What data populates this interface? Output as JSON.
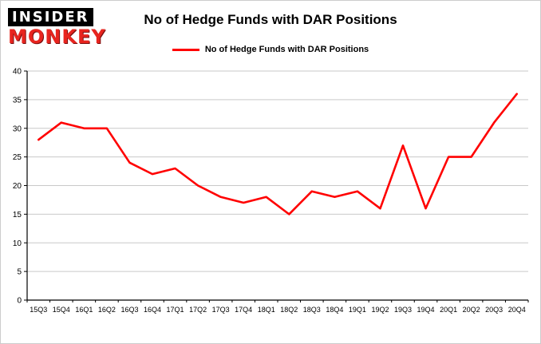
{
  "logo": {
    "line1": "INSIDER",
    "line2": "MONKEY",
    "brand_red": "#e8251f",
    "brand_black": "#000000"
  },
  "chart_data": {
    "type": "line",
    "title": "No of Hedge Funds with DAR Positions",
    "legend_label": "No of Hedge Funds with DAR Positions",
    "legend_position": "top",
    "grid": true,
    "categories": [
      "15Q3",
      "15Q4",
      "16Q1",
      "16Q2",
      "16Q3",
      "16Q4",
      "17Q1",
      "17Q2",
      "17Q3",
      "17Q4",
      "18Q1",
      "18Q2",
      "18Q3",
      "18Q4",
      "19Q1",
      "19Q2",
      "19Q3",
      "19Q4",
      "20Q1",
      "20Q2",
      "20Q3",
      "20Q4"
    ],
    "series": [
      {
        "name": "No of Hedge Funds with DAR Positions",
        "values": [
          28,
          31,
          30,
          30,
          24,
          22,
          23,
          20,
          18,
          17,
          18,
          15,
          19,
          18,
          19,
          16,
          27,
          16,
          25,
          25,
          31,
          36
        ]
      }
    ],
    "xlabel": "",
    "ylabel": "",
    "ylim": [
      0,
      40
    ],
    "ytick_step": 5,
    "line_color": "#ff0000",
    "gridline_color": "#c9c9c9",
    "axis_color": "#000000"
  }
}
